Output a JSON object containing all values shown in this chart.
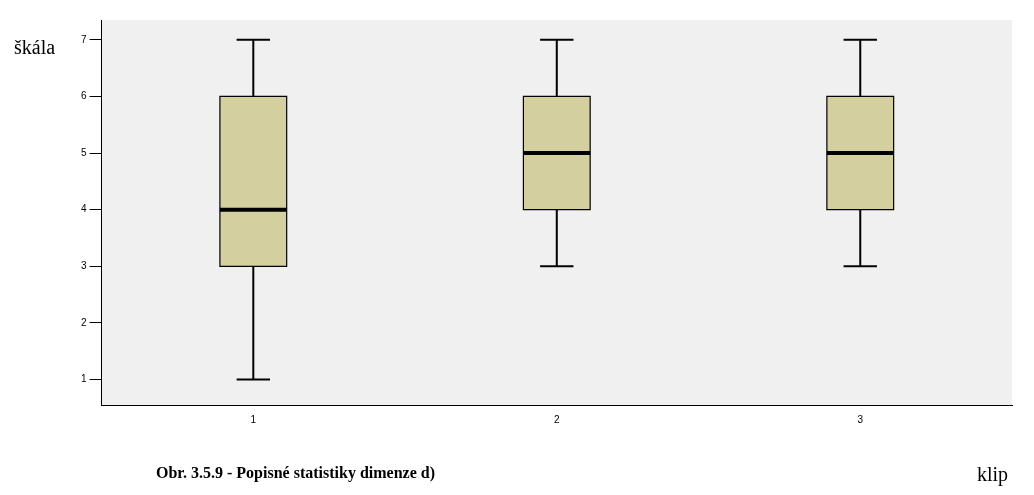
{
  "chart_data": {
    "type": "box",
    "ylabel": "škála",
    "xlabel": "klip",
    "categories": [
      "1",
      "2",
      "3"
    ],
    "color": "#d4cf9f",
    "boxes": [
      {
        "low": 1,
        "q1": 3,
        "median": 4,
        "q3": 6,
        "high": 7
      },
      {
        "low": 3,
        "q1": 4,
        "median": 5,
        "q3": 6,
        "high": 7
      },
      {
        "low": 3,
        "q1": 4,
        "median": 5,
        "q3": 6,
        "high": 7
      }
    ],
    "ylim": [
      0.55,
      7.35
    ],
    "yticks": [
      1,
      2,
      3,
      4,
      5,
      6,
      7
    ],
    "grid": false,
    "legend": false,
    "annotations": [
      "Obr. 3.5.9 - Popisné statistiky dimenze d)"
    ]
  }
}
